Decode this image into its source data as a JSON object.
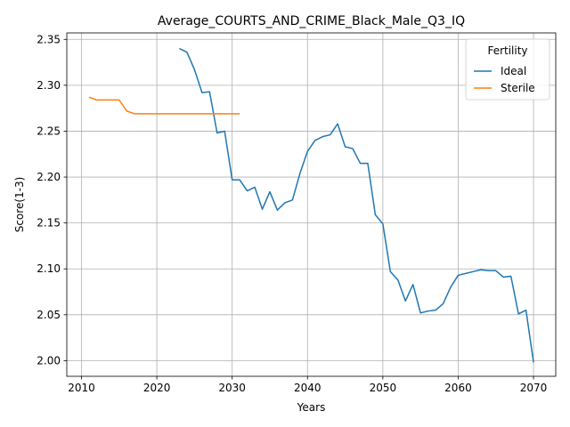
{
  "chart_data": {
    "type": "line",
    "title": "Average_COURTS_AND_CRIME_Black_Male_Q3_IQ",
    "xlabel": "Years",
    "ylabel": "Score(1-3)",
    "xlim": [
      2008.05,
      2072.95
    ],
    "ylim": [
      1.98295,
      2.35705
    ],
    "xticks": [
      2010,
      2020,
      2030,
      2040,
      2050,
      2060,
      2070
    ],
    "yticks": [
      2.0,
      2.05,
      2.1,
      2.15,
      2.2,
      2.25,
      2.3,
      2.35
    ],
    "grid": true,
    "legend": {
      "title": "Fertility",
      "placement": "top-right"
    },
    "series": [
      {
        "name": "Ideal",
        "color": "#1f77b4",
        "x": [
          2023,
          2024,
          2025,
          2026,
          2027,
          2028,
          2029,
          2030,
          2031,
          2032,
          2033,
          2034,
          2035,
          2036,
          2037,
          2038,
          2039,
          2040,
          2041,
          2042,
          2043,
          2044,
          2045,
          2046,
          2047,
          2048,
          2049,
          2050,
          2051,
          2052,
          2053,
          2054,
          2055,
          2056,
          2057,
          2058,
          2059,
          2060,
          2061,
          2062,
          2063,
          2064,
          2065,
          2066,
          2067,
          2068,
          2069,
          2070
        ],
        "y": [
          2.34,
          2.336,
          2.317,
          2.292,
          2.293,
          2.248,
          2.25,
          2.197,
          2.197,
          2.185,
          2.189,
          2.165,
          2.184,
          2.164,
          2.172,
          2.175,
          2.204,
          2.228,
          2.24,
          2.244,
          2.246,
          2.258,
          2.233,
          2.231,
          2.215,
          2.215,
          2.159,
          2.149,
          2.097,
          2.088,
          2.065,
          2.083,
          2.052,
          2.054,
          2.055,
          2.062,
          2.08,
          2.093,
          2.095,
          2.097,
          2.099,
          2.098,
          2.098,
          2.091,
          2.092,
          2.051,
          2.055,
          1.998
        ]
      },
      {
        "name": "Sterile",
        "color": "#ff7f0e",
        "x": [
          2011,
          2012,
          2013,
          2014,
          2015,
          2016,
          2017,
          2018,
          2019,
          2020,
          2021,
          2022,
          2023,
          2024,
          2025,
          2026,
          2027,
          2028,
          2029,
          2030,
          2031
        ],
        "y": [
          2.287,
          2.284,
          2.284,
          2.284,
          2.284,
          2.272,
          2.269,
          2.269,
          2.269,
          2.269,
          2.269,
          2.269,
          2.269,
          2.269,
          2.269,
          2.269,
          2.269,
          2.269,
          2.269,
          2.269,
          2.269
        ]
      }
    ]
  }
}
